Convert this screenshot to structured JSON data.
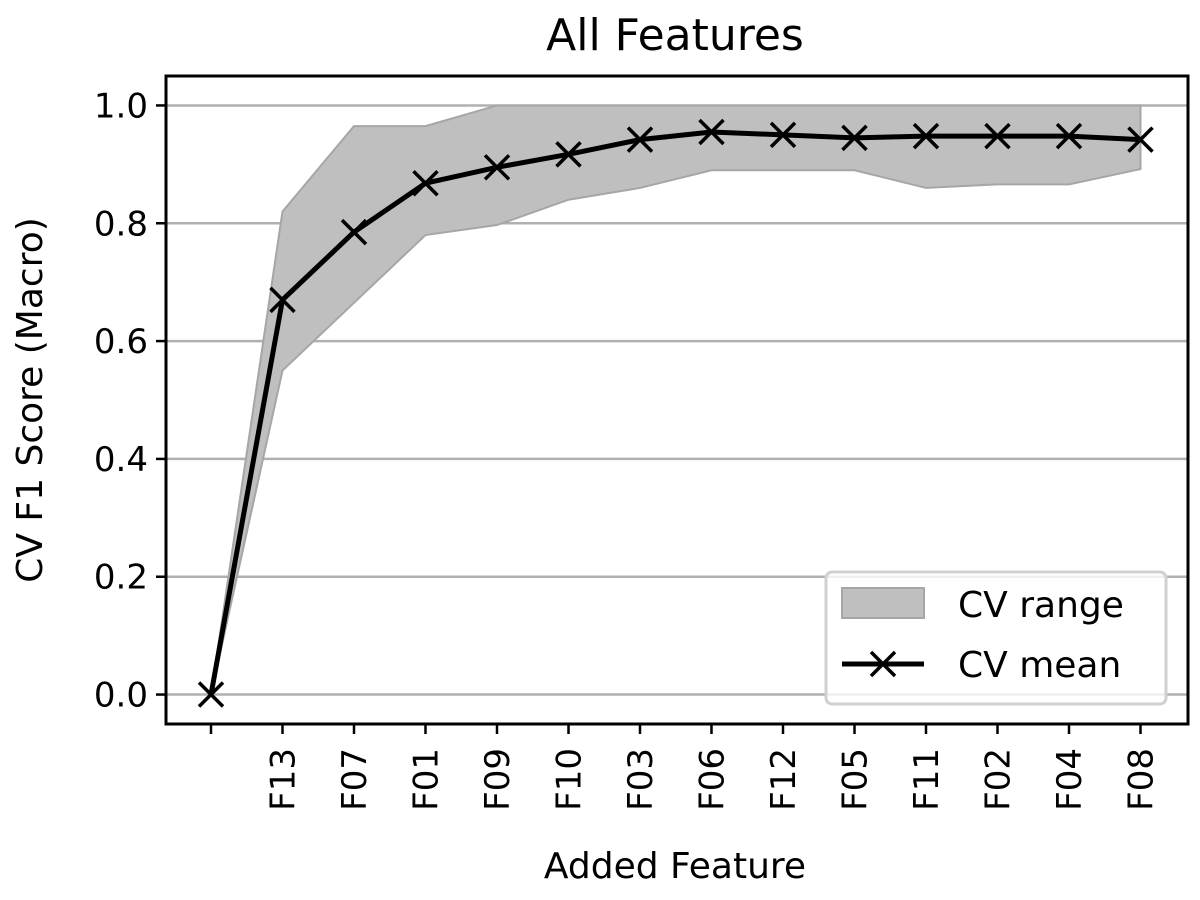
{
  "chart_data": {
    "type": "line",
    "title": "All Features",
    "xlabel": "Added Feature",
    "ylabel": "CV F1 Score (Macro)",
    "categories": [
      "",
      "F13",
      "F07",
      "F01",
      "F09",
      "F10",
      "F03",
      "F06",
      "F12",
      "F05",
      "F11",
      "F02",
      "F04",
      "F08"
    ],
    "series": [
      {
        "name": "CV mean",
        "values": [
          0.0,
          0.67,
          0.785,
          0.868,
          0.895,
          0.917,
          0.942,
          0.955,
          0.95,
          0.945,
          0.948,
          0.948,
          0.948,
          0.942
        ],
        "color": "#000000",
        "marker": "x"
      }
    ],
    "range": {
      "name": "CV range",
      "lower": [
        0.0,
        0.55,
        0.665,
        0.78,
        0.797,
        0.84,
        0.86,
        0.89,
        0.89,
        0.89,
        0.86,
        0.866,
        0.866,
        0.892
      ],
      "upper": [
        0.0,
        0.82,
        0.965,
        0.965,
        1.0,
        1.0,
        1.0,
        1.0,
        1.0,
        1.0,
        1.0,
        1.0,
        1.0,
        1.0
      ],
      "color": "#bfbfbf"
    },
    "ylim": [
      -0.05,
      1.05
    ],
    "yticks": [
      0.0,
      0.2,
      0.4,
      0.6,
      0.8,
      1.0
    ],
    "ytick_labels": [
      "0.0",
      "0.2",
      "0.4",
      "0.6",
      "0.8",
      "1.0"
    ],
    "grid": "y",
    "legend": "lower-right"
  }
}
